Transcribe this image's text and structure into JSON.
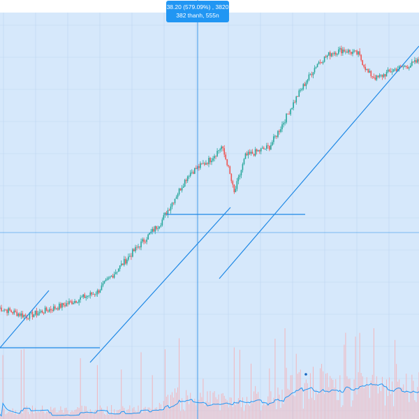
{
  "tooltip": {
    "line1": "38.20 (579.09%) , 3820",
    "line2": "382 thanh, 555n"
  },
  "colors": {
    "background": "#d6e8fb",
    "grid": "#bcd6f2",
    "drawing_line": "#1e88e5",
    "up_candle": "#26a69a",
    "down_candle": "#ef5350",
    "volume": "#f2b6bd",
    "volume_ma": "#2196f3",
    "top_strip": "#ffffff"
  },
  "chart_data": {
    "type": "candlestick",
    "series_desc": "price candles with volume histogram and volume moving average",
    "y_scale": "price (axis labels not visible)",
    "grid": true,
    "legend": "none",
    "price_anchors": [
      {
        "bar": 0,
        "price": 6.2
      },
      {
        "bar": 20,
        "price": 5.8
      },
      {
        "bar": 45,
        "price": 6.3
      },
      {
        "bar": 70,
        "price": 7.0
      },
      {
        "bar": 95,
        "price": 9.5
      },
      {
        "bar": 115,
        "price": 12.0
      },
      {
        "bar": 135,
        "price": 17.5
      },
      {
        "bar": 150,
        "price": 19.5
      },
      {
        "bar": 158,
        "price": 21.5
      },
      {
        "bar": 162,
        "price": 19.0
      },
      {
        "bar": 167,
        "price": 15.0
      },
      {
        "bar": 175,
        "price": 20.0
      },
      {
        "bar": 192,
        "price": 21.5
      },
      {
        "bar": 200,
        "price": 25.0
      },
      {
        "bar": 212,
        "price": 32.0
      },
      {
        "bar": 226,
        "price": 41.0
      },
      {
        "bar": 236,
        "price": 44.5
      },
      {
        "bar": 244,
        "price": 45.5
      },
      {
        "bar": 255,
        "price": 44.0
      },
      {
        "bar": 262,
        "price": 38.0
      },
      {
        "bar": 268,
        "price": 36.5
      },
      {
        "bar": 280,
        "price": 39.0
      },
      {
        "bar": 292,
        "price": 40.5
      },
      {
        "bar": 299,
        "price": 42.0
      }
    ],
    "cursor": {
      "price": 38.2,
      "change_pct": 579.09,
      "value": 3820,
      "bars": 382
    }
  }
}
